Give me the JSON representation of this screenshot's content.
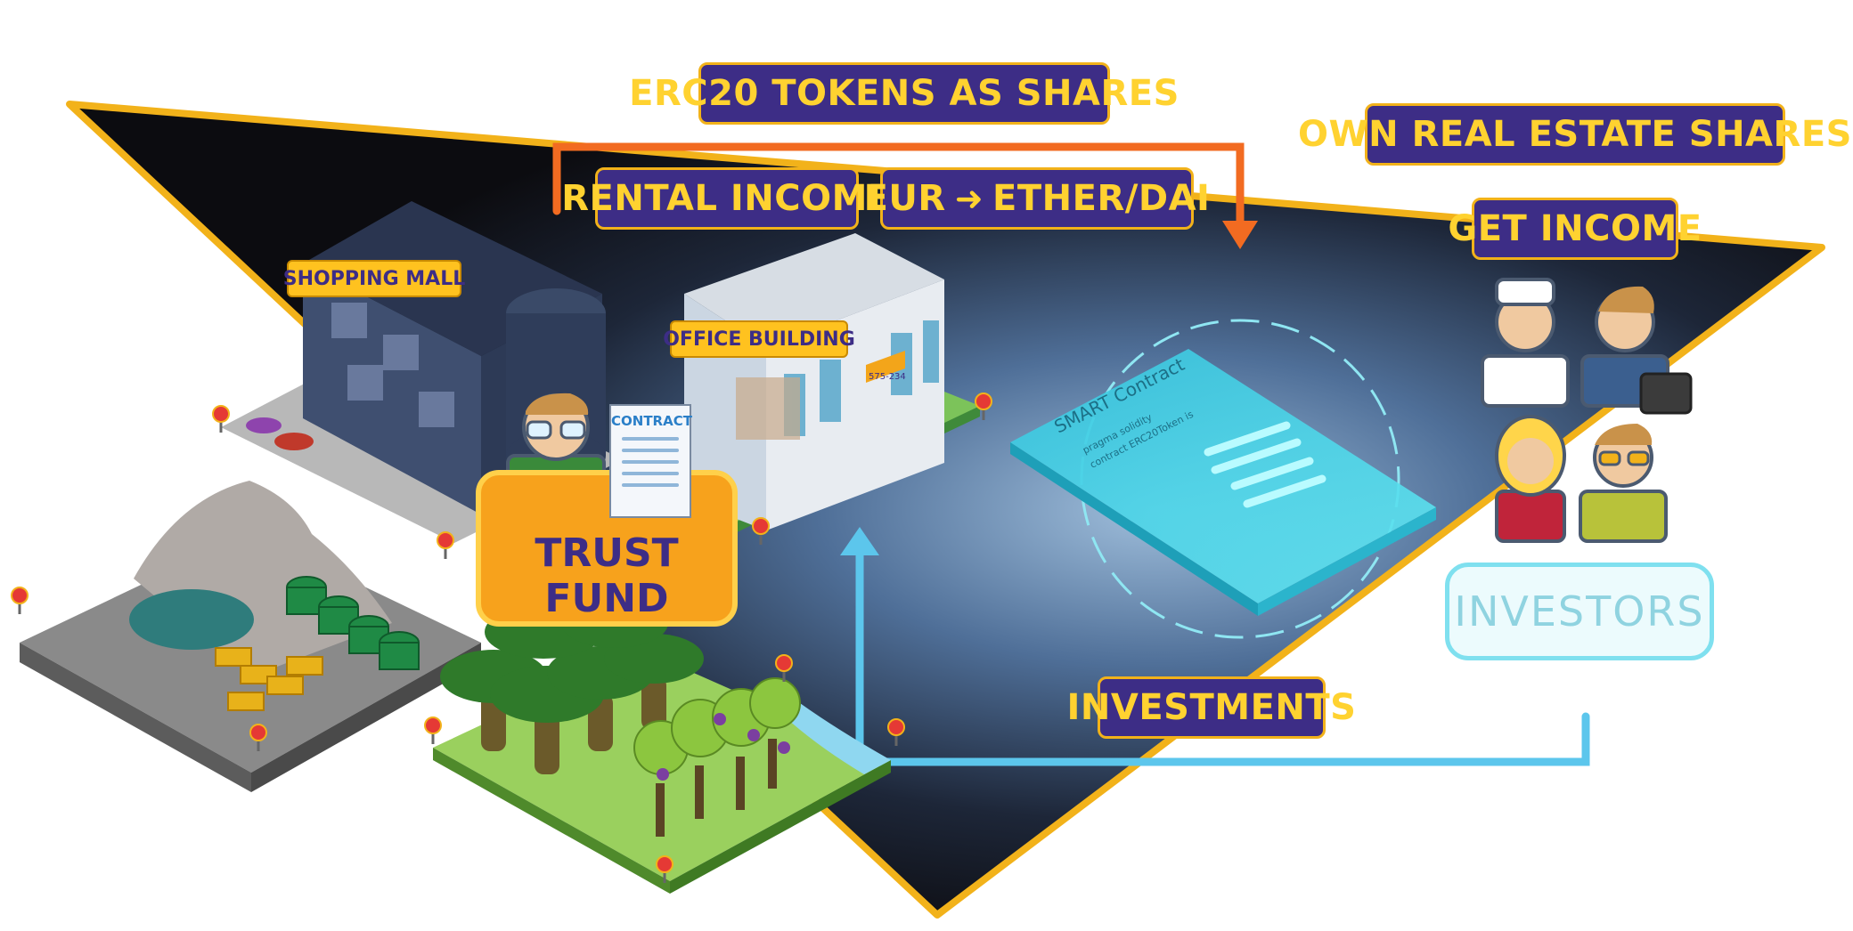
{
  "labels": {
    "erc20": "ERC20 TOKENS AS SHARES",
    "rental_income": "RENTAL INCOME",
    "eur_to_ether": "EUR",
    "eur_arrow": "➜",
    "ether_dai": "ETHER/DAI",
    "own_shares": "OWN REAL ESTATE SHARES",
    "get_income": "GET INCOME",
    "investments": "INVESTMENTS",
    "investors": "INVESTORS",
    "trust_fund": "TRUST FUND",
    "contract": "CONTRACT",
    "shopping_mall": "SHOPPING MALL",
    "office_building": "OFFICE BUILDING",
    "office_sign": "575-234",
    "smart_contract_title": "SMART Contract",
    "smart_contract_line1": "pragma solidity",
    "smart_contract_line2": "contract ERC20Token is"
  },
  "colors": {
    "label_bg": "#3d2d86",
    "label_text": "#ffd230",
    "triangle_border": "#f2b21a",
    "orange_arrow": "#f26b21",
    "blue_arrow": "#5cc6ec",
    "trust_fund_bg": "#f7a21c",
    "hologram": "#3fe0f0"
  },
  "icons": {
    "pins": "map-pin-icon",
    "arrow_right": "arrow-right-icon",
    "briefcase": "briefcase-icon"
  }
}
